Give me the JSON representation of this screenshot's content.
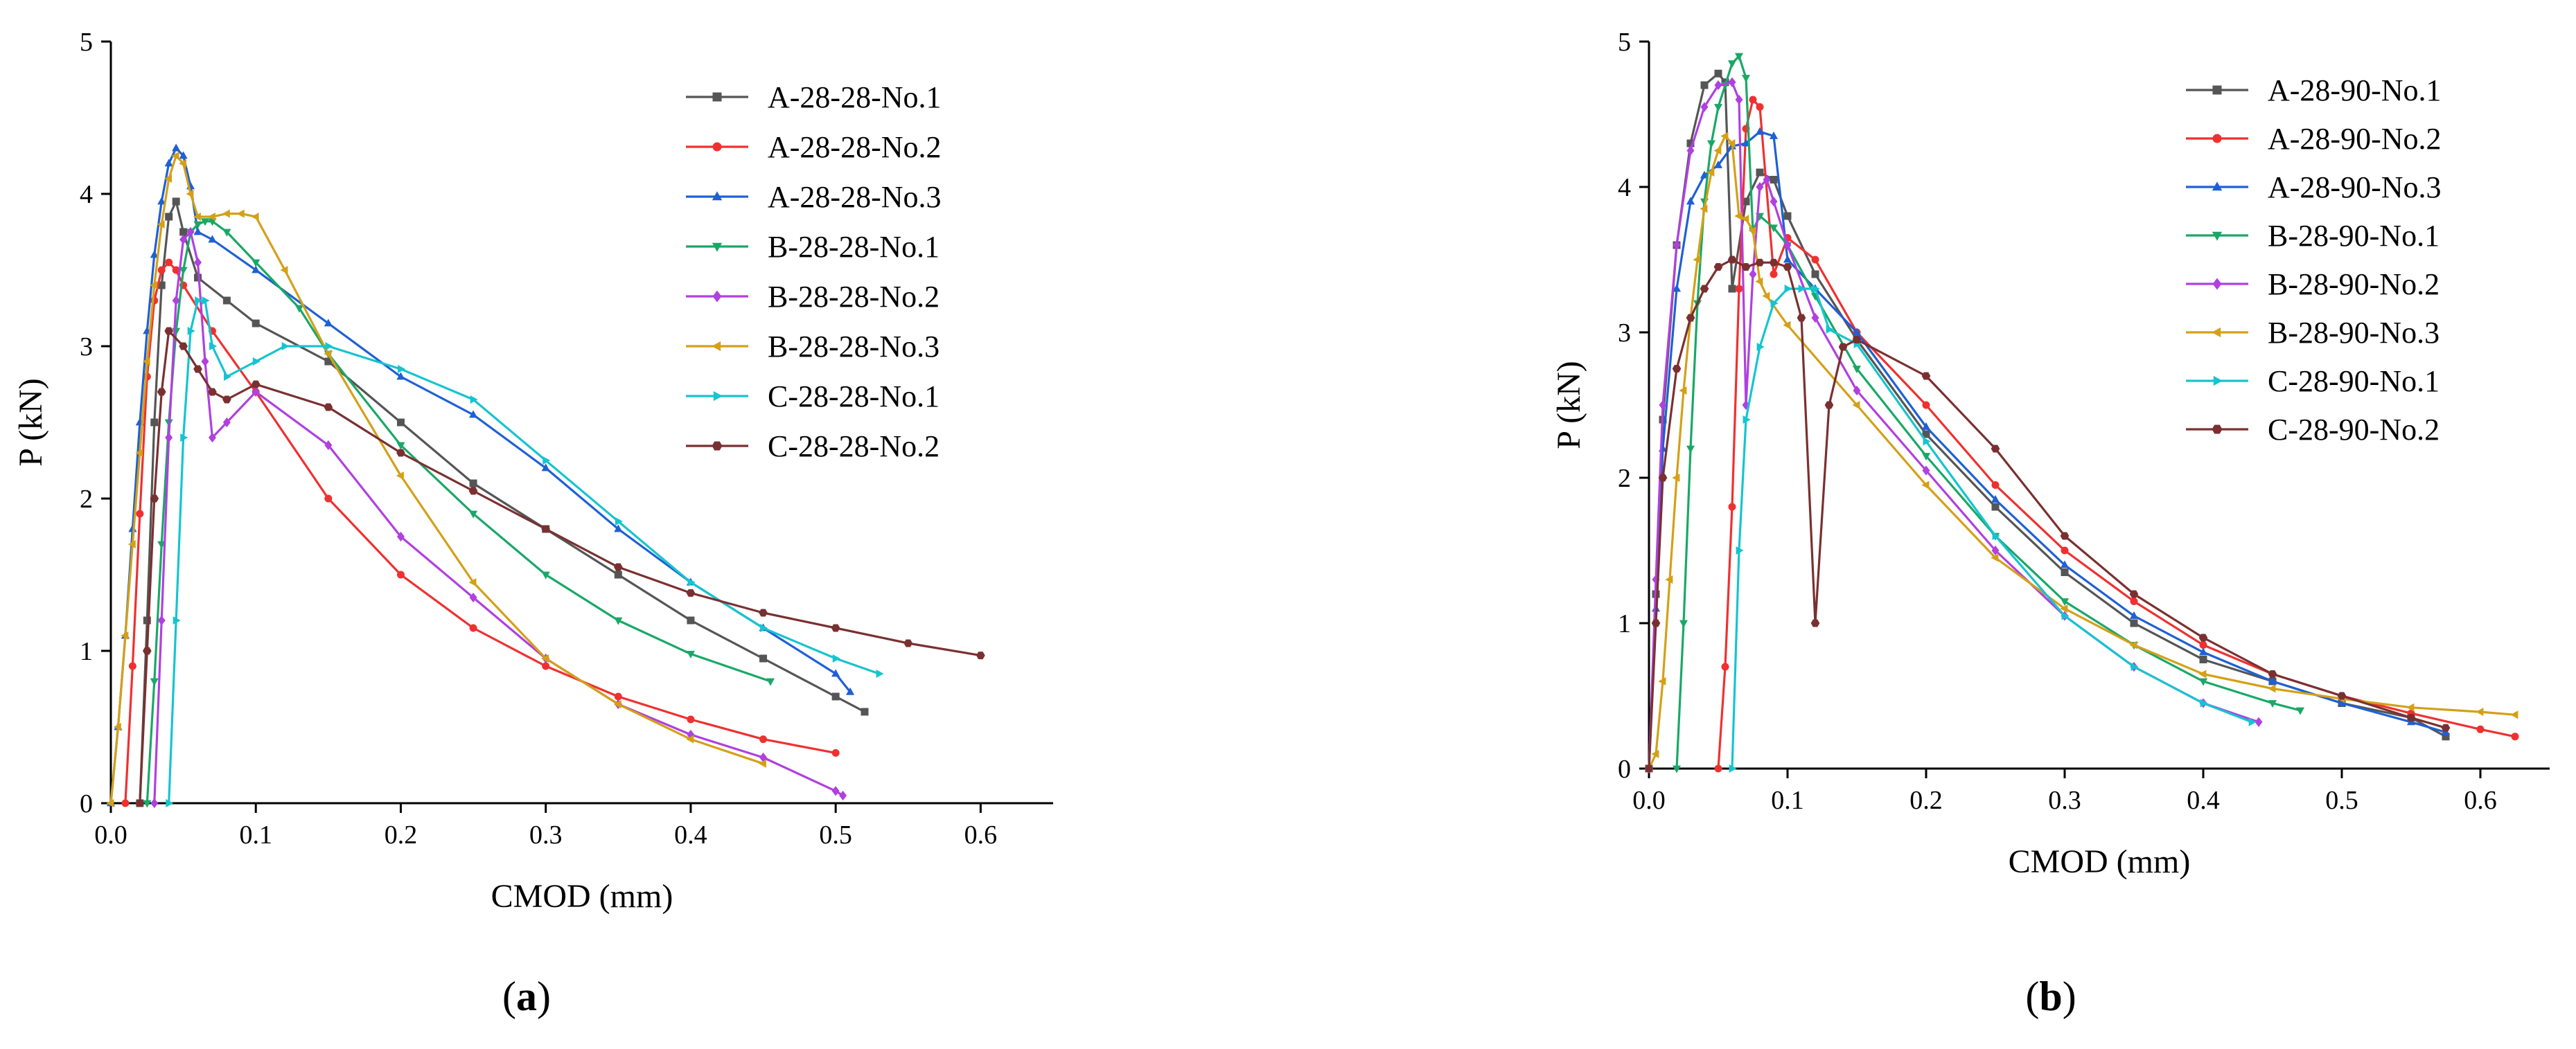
{
  "chart_data": [
    {
      "type": "line",
      "panel_label": "a",
      "xlabel": "CMOD (mm)",
      "ylabel": "P (kN)",
      "xlim": [
        0,
        0.65
      ],
      "ylim": [
        0,
        5
      ],
      "xticks": [
        "0.0",
        "0.1",
        "0.2",
        "0.3",
        "0.4",
        "0.5",
        "0.6"
      ],
      "yticks": [
        "0",
        "1",
        "2",
        "3",
        "4",
        "5"
      ],
      "legend_position": "top-right",
      "series": [
        {
          "name": "A-28-28-No.1",
          "color": "#555555",
          "marker": "square",
          "x": [
            0.02,
            0.025,
            0.03,
            0.035,
            0.04,
            0.045,
            0.05,
            0.06,
            0.08,
            0.1,
            0.15,
            0.2,
            0.25,
            0.3,
            0.35,
            0.4,
            0.45,
            0.5,
            0.52
          ],
          "y": [
            0,
            1.2,
            2.5,
            3.4,
            3.85,
            3.95,
            3.75,
            3.45,
            3.3,
            3.15,
            2.9,
            2.5,
            2.1,
            1.8,
            1.5,
            1.2,
            0.95,
            0.7,
            0.6
          ]
        },
        {
          "name": "A-28-28-No.2",
          "color": "#f03030",
          "marker": "circle",
          "x": [
            0.01,
            0.015,
            0.02,
            0.025,
            0.03,
            0.035,
            0.04,
            0.045,
            0.05,
            0.07,
            0.1,
            0.15,
            0.2,
            0.25,
            0.3,
            0.35,
            0.4,
            0.45,
            0.5
          ],
          "y": [
            0,
            0.9,
            1.9,
            2.8,
            3.3,
            3.5,
            3.55,
            3.5,
            3.4,
            3.1,
            2.7,
            2.0,
            1.5,
            1.15,
            0.9,
            0.7,
            0.55,
            0.42,
            0.33
          ]
        },
        {
          "name": "A-28-28-No.3",
          "color": "#1e60d6",
          "marker": "triangle",
          "x": [
            0,
            0.005,
            0.01,
            0.015,
            0.02,
            0.025,
            0.03,
            0.035,
            0.04,
            0.045,
            0.05,
            0.055,
            0.06,
            0.07,
            0.1,
            0.15,
            0.2,
            0.25,
            0.3,
            0.35,
            0.4,
            0.45,
            0.5,
            0.51
          ],
          "y": [
            0,
            0.5,
            1.1,
            1.8,
            2.5,
            3.1,
            3.6,
            3.95,
            4.2,
            4.3,
            4.25,
            4.05,
            3.75,
            3.7,
            3.5,
            3.15,
            2.8,
            2.55,
            2.2,
            1.8,
            1.45,
            1.15,
            0.85,
            0.73
          ]
        },
        {
          "name": "B-28-28-No.1",
          "color": "#19a867",
          "marker": "triangle-down",
          "x": [
            0.025,
            0.03,
            0.035,
            0.04,
            0.045,
            0.05,
            0.055,
            0.06,
            0.065,
            0.07,
            0.08,
            0.1,
            0.13,
            0.15,
            0.2,
            0.25,
            0.3,
            0.35,
            0.4,
            0.455
          ],
          "y": [
            0,
            0.8,
            1.7,
            2.5,
            3.1,
            3.5,
            3.75,
            3.8,
            3.82,
            3.82,
            3.75,
            3.55,
            3.25,
            2.95,
            2.35,
            1.9,
            1.5,
            1.2,
            0.98,
            0.8
          ]
        },
        {
          "name": "B-28-28-No.2",
          "color": "#b040e0",
          "marker": "diamond",
          "x": [
            0.03,
            0.035,
            0.04,
            0.045,
            0.05,
            0.055,
            0.06,
            0.065,
            0.07,
            0.08,
            0.1,
            0.15,
            0.2,
            0.25,
            0.3,
            0.35,
            0.4,
            0.45,
            0.5,
            0.505
          ],
          "y": [
            0,
            1.2,
            2.4,
            3.3,
            3.7,
            3.75,
            3.55,
            2.9,
            2.4,
            2.5,
            2.7,
            2.35,
            1.75,
            1.35,
            0.95,
            0.65,
            0.45,
            0.3,
            0.08,
            0.05
          ]
        },
        {
          "name": "B-28-28-No.3",
          "color": "#d4a017",
          "marker": "triangle-left",
          "x": [
            0,
            0.005,
            0.01,
            0.015,
            0.02,
            0.025,
            0.03,
            0.035,
            0.04,
            0.045,
            0.05,
            0.055,
            0.06,
            0.07,
            0.08,
            0.09,
            0.1,
            0.12,
            0.15,
            0.2,
            0.25,
            0.3,
            0.35,
            0.4,
            0.45
          ],
          "y": [
            0,
            0.5,
            1.1,
            1.7,
            2.3,
            2.9,
            3.4,
            3.8,
            4.1,
            4.25,
            4.2,
            4.0,
            3.85,
            3.85,
            3.87,
            3.87,
            3.85,
            3.5,
            2.95,
            2.15,
            1.45,
            0.95,
            0.65,
            0.42,
            0.26
          ]
        },
        {
          "name": "C-28-28-No.1",
          "color": "#16c4d0",
          "marker": "triangle-right",
          "x": [
            0.04,
            0.045,
            0.05,
            0.055,
            0.06,
            0.065,
            0.07,
            0.08,
            0.1,
            0.12,
            0.15,
            0.2,
            0.25,
            0.3,
            0.35,
            0.4,
            0.45,
            0.5,
            0.53
          ],
          "y": [
            0,
            1.2,
            2.4,
            3.1,
            3.3,
            3.3,
            3.0,
            2.8,
            2.9,
            3.0,
            3.0,
            2.85,
            2.65,
            2.25,
            1.85,
            1.45,
            1.15,
            0.95,
            0.85
          ]
        },
        {
          "name": "C-28-28-No.2",
          "color": "#7a3030",
          "marker": "hexagon",
          "x": [
            0.02,
            0.025,
            0.03,
            0.035,
            0.04,
            0.05,
            0.06,
            0.07,
            0.08,
            0.1,
            0.15,
            0.2,
            0.25,
            0.3,
            0.35,
            0.4,
            0.45,
            0.5,
            0.55,
            0.6
          ],
          "y": [
            0,
            1.0,
            2.0,
            2.7,
            3.1,
            3.0,
            2.85,
            2.7,
            2.65,
            2.75,
            2.6,
            2.3,
            2.05,
            1.8,
            1.55,
            1.38,
            1.25,
            1.15,
            1.05,
            0.97
          ]
        }
      ]
    },
    {
      "type": "line",
      "panel_label": "b",
      "xlabel": "CMOD (mm)",
      "ylabel": "P (kN)",
      "xlim": [
        0,
        0.65
      ],
      "ylim": [
        0,
        5
      ],
      "xticks": [
        "0.0",
        "0.1",
        "0.2",
        "0.3",
        "0.4",
        "0.5",
        "0.6"
      ],
      "yticks": [
        "0",
        "1",
        "2",
        "3",
        "4",
        "5"
      ],
      "legend_position": "top-right",
      "series": [
        {
          "name": "A-28-90-No.1",
          "color": "#555555",
          "marker": "square",
          "x": [
            0,
            0.005,
            0.01,
            0.02,
            0.03,
            0.04,
            0.05,
            0.055,
            0.06,
            0.07,
            0.08,
            0.09,
            0.1,
            0.12,
            0.15,
            0.2,
            0.25,
            0.3,
            0.35,
            0.4,
            0.45,
            0.5,
            0.55,
            0.575
          ],
          "y": [
            0,
            1.2,
            2.4,
            3.6,
            4.3,
            4.7,
            4.78,
            4.72,
            3.3,
            3.9,
            4.1,
            4.05,
            3.8,
            3.4,
            2.95,
            2.3,
            1.8,
            1.35,
            1.0,
            0.75,
            0.6,
            0.45,
            0.35,
            0.22
          ]
        },
        {
          "name": "A-28-90-No.2",
          "color": "#f03030",
          "marker": "circle",
          "x": [
            0.05,
            0.055,
            0.06,
            0.065,
            0.07,
            0.075,
            0.08,
            0.09,
            0.1,
            0.12,
            0.15,
            0.2,
            0.25,
            0.3,
            0.35,
            0.4,
            0.45,
            0.5,
            0.55,
            0.6,
            0.625
          ],
          "y": [
            0,
            0.7,
            1.8,
            3.3,
            4.4,
            4.6,
            4.55,
            3.4,
            3.65,
            3.5,
            3.0,
            2.5,
            1.95,
            1.5,
            1.15,
            0.85,
            0.65,
            0.5,
            0.38,
            0.27,
            0.22
          ]
        },
        {
          "name": "A-28-90-No.3",
          "color": "#1e60d6",
          "marker": "triangle",
          "x": [
            0,
            0.005,
            0.01,
            0.02,
            0.03,
            0.04,
            0.05,
            0.06,
            0.07,
            0.08,
            0.09,
            0.1,
            0.12,
            0.15,
            0.2,
            0.25,
            0.3,
            0.35,
            0.4,
            0.45,
            0.5,
            0.55,
            0.575
          ],
          "y": [
            0,
            1.1,
            2.2,
            3.3,
            3.9,
            4.08,
            4.15,
            4.28,
            4.3,
            4.38,
            4.35,
            3.5,
            3.3,
            3.0,
            2.35,
            1.85,
            1.4,
            1.05,
            0.8,
            0.6,
            0.45,
            0.32,
            0.25
          ]
        },
        {
          "name": "B-28-90-No.1",
          "color": "#19a867",
          "marker": "triangle-down",
          "x": [
            0.02,
            0.025,
            0.03,
            0.035,
            0.04,
            0.045,
            0.05,
            0.055,
            0.06,
            0.065,
            0.07,
            0.075,
            0.08,
            0.09,
            0.1,
            0.12,
            0.15,
            0.2,
            0.25,
            0.3,
            0.35,
            0.4,
            0.45,
            0.47
          ],
          "y": [
            0,
            1.0,
            2.2,
            3.2,
            3.9,
            4.3,
            4.55,
            4.7,
            4.85,
            4.9,
            4.75,
            3.7,
            3.8,
            3.72,
            3.6,
            3.25,
            2.75,
            2.15,
            1.6,
            1.15,
            0.85,
            0.6,
            0.45,
            0.4
          ]
        },
        {
          "name": "B-28-90-No.2",
          "color": "#b040e0",
          "marker": "diamond",
          "x": [
            0,
            0.005,
            0.01,
            0.02,
            0.03,
            0.04,
            0.05,
            0.06,
            0.065,
            0.07,
            0.075,
            0.08,
            0.085,
            0.09,
            0.1,
            0.12,
            0.15,
            0.2,
            0.25,
            0.3,
            0.35,
            0.4,
            0.44
          ],
          "y": [
            0,
            1.3,
            2.5,
            3.6,
            4.25,
            4.55,
            4.7,
            4.72,
            4.6,
            2.5,
            3.4,
            4.0,
            4.05,
            3.9,
            3.6,
            3.1,
            2.6,
            2.05,
            1.5,
            1.05,
            0.7,
            0.45,
            0.32
          ]
        },
        {
          "name": "B-28-90-No.3",
          "color": "#d4a017",
          "marker": "triangle-left",
          "x": [
            0,
            0.005,
            0.01,
            0.015,
            0.02,
            0.025,
            0.03,
            0.035,
            0.04,
            0.045,
            0.05,
            0.055,
            0.06,
            0.065,
            0.07,
            0.075,
            0.08,
            0.085,
            0.1,
            0.15,
            0.2,
            0.25,
            0.3,
            0.35,
            0.4,
            0.45,
            0.5,
            0.55,
            0.6,
            0.625
          ],
          "y": [
            0,
            0.1,
            0.6,
            1.3,
            2.0,
            2.6,
            3.1,
            3.5,
            3.85,
            4.1,
            4.25,
            4.35,
            4.3,
            3.8,
            3.78,
            3.7,
            3.35,
            3.25,
            3.05,
            2.5,
            1.95,
            1.45,
            1.1,
            0.85,
            0.65,
            0.55,
            0.48,
            0.42,
            0.39,
            0.37
          ]
        },
        {
          "name": "C-28-90-No.1",
          "color": "#16c4d0",
          "marker": "triangle-right",
          "x": [
            0.06,
            0.065,
            0.07,
            0.08,
            0.09,
            0.1,
            0.11,
            0.12,
            0.13,
            0.15,
            0.2,
            0.25,
            0.3,
            0.35,
            0.4,
            0.435
          ],
          "y": [
            0,
            1.5,
            2.4,
            2.9,
            3.2,
            3.3,
            3.3,
            3.3,
            3.02,
            2.92,
            2.25,
            1.6,
            1.05,
            0.7,
            0.45,
            0.32
          ]
        },
        {
          "name": "C-28-90-No.2",
          "color": "#7a3030",
          "marker": "hexagon",
          "x": [
            0,
            0.005,
            0.01,
            0.02,
            0.03,
            0.04,
            0.05,
            0.06,
            0.07,
            0.08,
            0.09,
            0.1,
            0.11,
            0.12,
            0.13,
            0.14,
            0.15,
            0.2,
            0.25,
            0.3,
            0.35,
            0.4,
            0.45,
            0.5,
            0.55,
            0.575
          ],
          "y": [
            0,
            1.0,
            2.0,
            2.75,
            3.1,
            3.3,
            3.45,
            3.5,
            3.45,
            3.48,
            3.48,
            3.45,
            3.1,
            1.0,
            2.5,
            2.9,
            2.95,
            2.7,
            2.2,
            1.6,
            1.2,
            0.9,
            0.65,
            0.5,
            0.35,
            0.28
          ]
        }
      ]
    }
  ]
}
